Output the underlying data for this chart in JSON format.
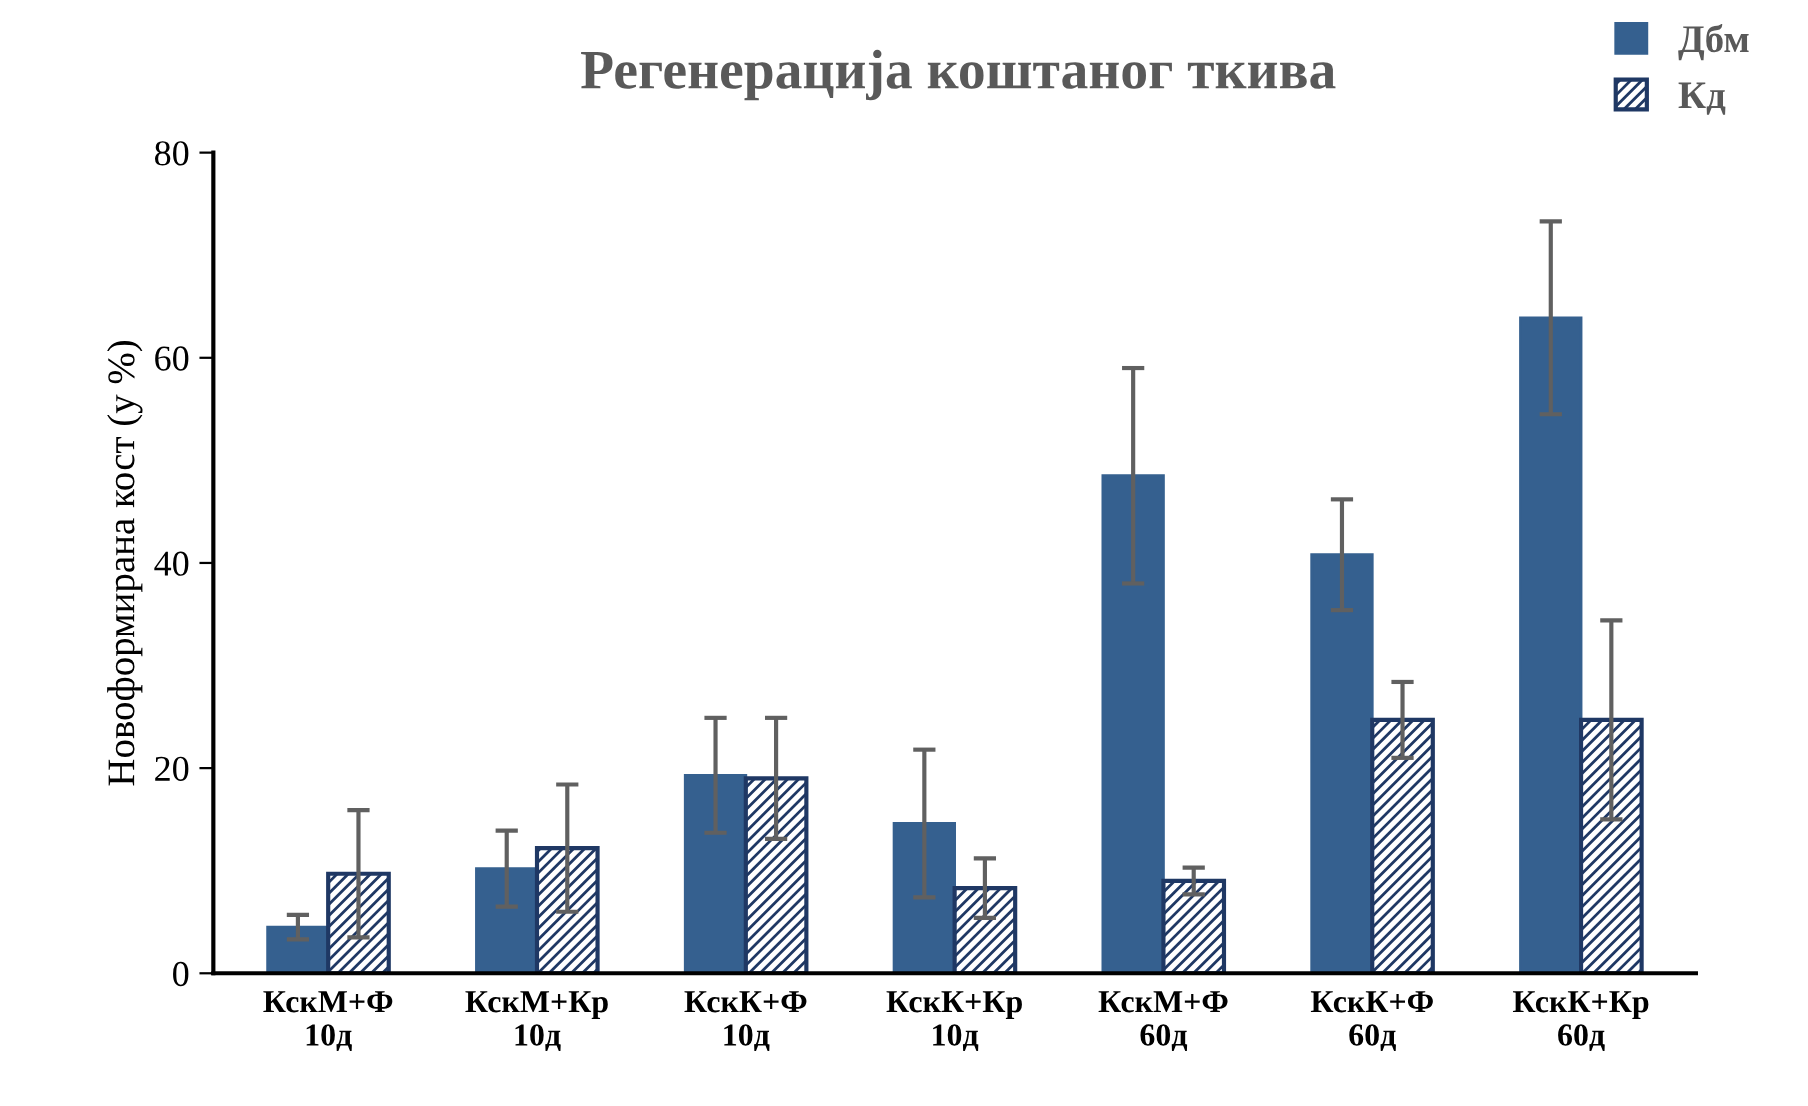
{
  "chart_data": {
    "type": "bar",
    "title": "Регенерација коштаног ткива",
    "ylabel": "Новоформирана кост (у %)",
    "categories": [
      "КскМ+Ф\n10д",
      "КскМ+Кр\n10д",
      "КскК+Ф\n10д",
      "КскК+Кр\n10д",
      "КскМ+Ф\n60д",
      "КскК+Ф\n60д",
      "КскК+Кр\n60д"
    ],
    "series": [
      {
        "name": "Дбм",
        "color": "#35608f",
        "values": [
          4.5,
          10.2,
          19.3,
          14.6,
          48.5,
          40.8,
          63.9
        ],
        "errors": [
          1.2,
          3.7,
          5.6,
          7.2,
          10.5,
          5.4,
          9.4
        ]
      },
      {
        "name": "Кд",
        "color": "#1f3864",
        "values": [
          9.7,
          12.2,
          19.0,
          8.3,
          9.0,
          24.7,
          24.7
        ],
        "errors": [
          6.2,
          6.2,
          5.9,
          2.9,
          1.3,
          3.7,
          9.7
        ]
      }
    ],
    "ylim": [
      0,
      80
    ],
    "yticks": [
      0,
      20,
      40,
      60,
      80
    ],
    "grid": false,
    "legend": "top right"
  }
}
